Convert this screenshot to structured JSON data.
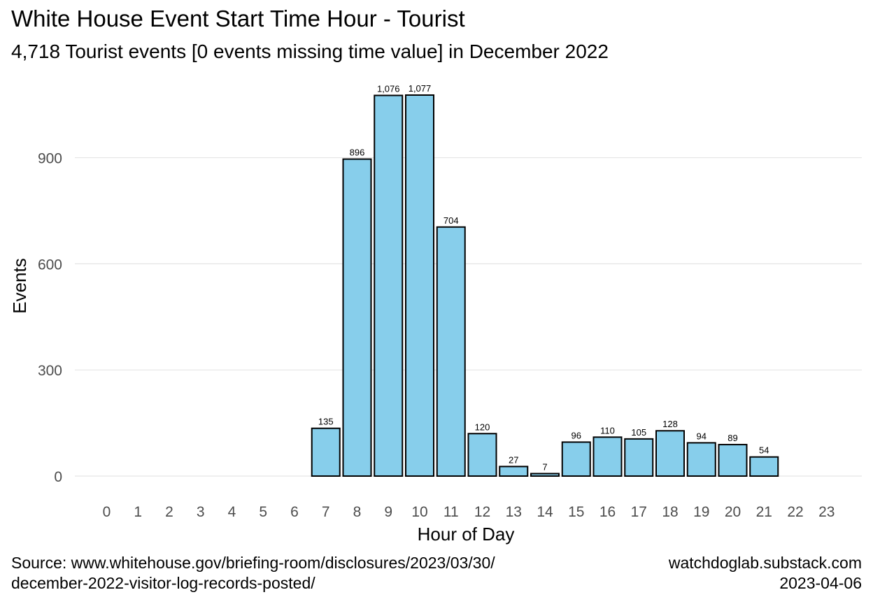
{
  "chart_data": {
    "type": "bar",
    "title": "White House Event Start Time Hour - Tourist",
    "subtitle": "4,718 Tourist events [0 events missing time value]  in December 2022",
    "xlabel": "Hour of Day",
    "ylabel": "Events",
    "categories": [
      "0",
      "1",
      "2",
      "3",
      "4",
      "5",
      "6",
      "7",
      "8",
      "9",
      "10",
      "11",
      "12",
      "13",
      "14",
      "15",
      "16",
      "17",
      "18",
      "19",
      "20",
      "21",
      "22",
      "23"
    ],
    "values": [
      0,
      0,
      0,
      0,
      0,
      0,
      0,
      135,
      896,
      1076,
      1077,
      704,
      120,
      27,
      7,
      96,
      110,
      105,
      128,
      94,
      89,
      54,
      0,
      0
    ],
    "data_labels": [
      "",
      "",
      "",
      "",
      "",
      "",
      "",
      "135",
      "896",
      "1,076",
      "1,077",
      "704",
      "120",
      "27",
      "7",
      "96",
      "110",
      "105",
      "128",
      "94",
      "89",
      "54",
      "",
      ""
    ],
    "yticks": [
      0,
      300,
      600,
      900
    ],
    "ylim": [
      0,
      1077
    ],
    "grid": true,
    "bar_color": "#87CEEB",
    "bar_outline": "#000000"
  },
  "caption": {
    "left_line1": "Source: www.whitehouse.gov/briefing-room/disclosures/2023/03/30/",
    "left_line2": "december-2022-visitor-log-records-posted/",
    "right_line1": "watchdoglab.substack.com",
    "right_line2": "2023-04-06"
  }
}
